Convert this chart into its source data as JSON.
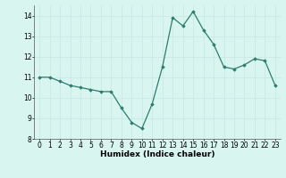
{
  "x": [
    0,
    1,
    2,
    3,
    4,
    5,
    6,
    7,
    8,
    9,
    10,
    11,
    12,
    13,
    14,
    15,
    16,
    17,
    18,
    19,
    20,
    21,
    22,
    23
  ],
  "y": [
    11.0,
    11.0,
    10.8,
    10.6,
    10.5,
    10.4,
    10.3,
    10.3,
    9.5,
    8.8,
    8.5,
    9.7,
    11.5,
    13.9,
    13.5,
    14.2,
    13.3,
    12.6,
    11.5,
    11.4,
    11.6,
    11.9,
    11.8,
    10.6
  ],
  "line_color": "#2d7d6e",
  "marker": "D",
  "marker_size": 1.8,
  "bg_color": "#d8f5f0",
  "grid_color": "#c8e8e2",
  "xlabel": "Humidex (Indice chaleur)",
  "ylim": [
    8,
    14.5
  ],
  "yticks": [
    8,
    9,
    10,
    11,
    12,
    13,
    14
  ],
  "xticks": [
    0,
    1,
    2,
    3,
    4,
    5,
    6,
    7,
    8,
    9,
    10,
    11,
    12,
    13,
    14,
    15,
    16,
    17,
    18,
    19,
    20,
    21,
    22,
    23
  ],
  "tick_fontsize": 5.5,
  "xlabel_fontsize": 6.5,
  "line_width": 0.9
}
